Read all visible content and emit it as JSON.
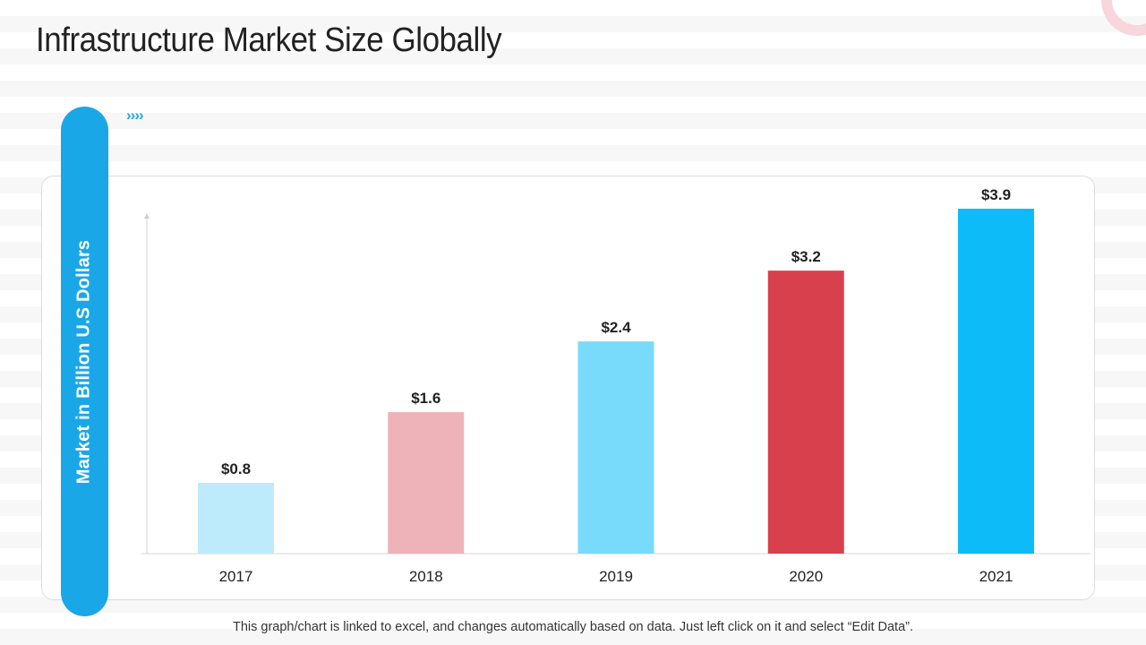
{
  "title": "Infrastructure Market Size Globally",
  "side_label": "Market in Billion U.S Dollars",
  "decor_chevrons": "››››",
  "footnote": "This graph/chart is linked to excel, and changes automatically  based on data. Just left click on it and select “Edit Data”.",
  "colors": {
    "accent": "#1aa7e8",
    "bar_colors": [
      "#bdebfb",
      "#edb3b8",
      "#79dbfb",
      "#d8404e",
      "#0ebbf9"
    ]
  },
  "chart_data": {
    "type": "bar",
    "title": "",
    "xlabel": "",
    "ylabel": "Market in Billion U.S Dollars",
    "categories": [
      "2017",
      "2018",
      "2019",
      "2020",
      "2021"
    ],
    "values": [
      0.8,
      1.6,
      2.4,
      3.2,
      3.9
    ],
    "data_labels": [
      "$0.8",
      "$1.6",
      "$2.4",
      "$3.2",
      "$3.9"
    ],
    "ylim": [
      0,
      3.9
    ],
    "grid": false,
    "legend": "none"
  }
}
